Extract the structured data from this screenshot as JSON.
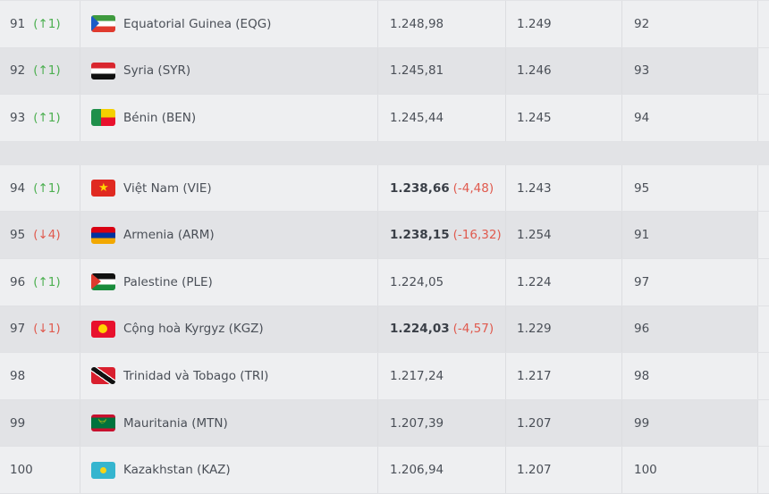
{
  "rows": [
    {
      "rank": "91",
      "move": "(↑1)",
      "dir": "up",
      "flag": "EQG",
      "team": "Equatorial Guinea (EQG)",
      "points": "1.248,98",
      "delta": "",
      "prev_points": "1.249",
      "prev_rank": "92"
    },
    {
      "rank": "92",
      "move": "(↑1)",
      "dir": "up",
      "flag": "SYR",
      "team": "Syria (SYR)",
      "points": "1.245,81",
      "delta": "",
      "prev_points": "1.246",
      "prev_rank": "93"
    },
    {
      "rank": "93",
      "move": "(↑1)",
      "dir": "up",
      "flag": "BEN",
      "team": "Bénin (BEN)",
      "points": "1.245,44",
      "delta": "",
      "prev_points": "1.245",
      "prev_rank": "94"
    },
    {
      "rank": "94",
      "move": "(↑1)",
      "dir": "up",
      "flag": "VIE",
      "team": "Việt Nam (VIE)",
      "points": "1.238,66",
      "delta": "(-4,48)",
      "prev_points": "1.243",
      "prev_rank": "95"
    },
    {
      "rank": "95",
      "move": "(↓4)",
      "dir": "down",
      "flag": "ARM",
      "team": "Armenia (ARM)",
      "points": "1.238,15",
      "delta": "(-16,32)",
      "prev_points": "1.254",
      "prev_rank": "91"
    },
    {
      "rank": "96",
      "move": "(↑1)",
      "dir": "up",
      "flag": "PLE",
      "team": "Palestine (PLE)",
      "points": "1.224,05",
      "delta": "",
      "prev_points": "1.224",
      "prev_rank": "97"
    },
    {
      "rank": "97",
      "move": "(↓1)",
      "dir": "down",
      "flag": "KGZ",
      "team": "Cộng hoà Kyrgyz (KGZ)",
      "points": "1.224,03",
      "delta": "(-4,57)",
      "prev_points": "1.229",
      "prev_rank": "96"
    },
    {
      "rank": "98",
      "move": "",
      "dir": "",
      "flag": "TRI",
      "team": "Trinidad và Tobago (TRI)",
      "points": "1.217,24",
      "delta": "",
      "prev_points": "1.217",
      "prev_rank": "98"
    },
    {
      "rank": "99",
      "move": "",
      "dir": "",
      "flag": "MTN",
      "team": "Mauritania (MTN)",
      "points": "1.207,39",
      "delta": "",
      "prev_points": "1.207",
      "prev_rank": "99"
    },
    {
      "rank": "100",
      "move": "",
      "dir": "",
      "flag": "KAZ",
      "team": "Kazakhstan (KAZ)",
      "points": "1.206,94",
      "delta": "",
      "prev_points": "1.207",
      "prev_rank": "100"
    }
  ],
  "colors": {
    "up": "#4caf50",
    "down": "#e05a4e",
    "row_light": "#eeeff1",
    "row_dark": "#e2e3e6"
  }
}
